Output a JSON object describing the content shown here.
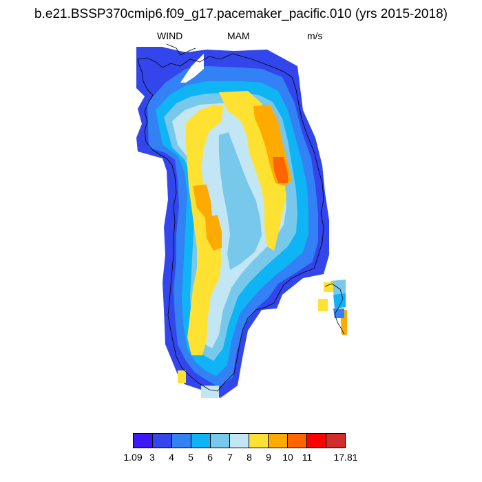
{
  "title": "b.e21.BSSP370cmip6.f09_g17.pacemaker_pacific.010 (yrs 2015-2018)",
  "subtitle": {
    "left": "WIND",
    "center": "MAM",
    "right": "m/s"
  },
  "colorbar": {
    "colors": [
      "#3c19f5",
      "#3246eb",
      "#3282f5",
      "#0fb4f5",
      "#78c8eb",
      "#c3e6f5",
      "#ffe132",
      "#ffaa00",
      "#ff6400",
      "#ff0000",
      "#d22d2d"
    ],
    "labels": [
      "1.09",
      "3",
      "4",
      "5",
      "6",
      "7",
      "8",
      "9",
      "10",
      "11",
      "17.81"
    ]
  }
}
